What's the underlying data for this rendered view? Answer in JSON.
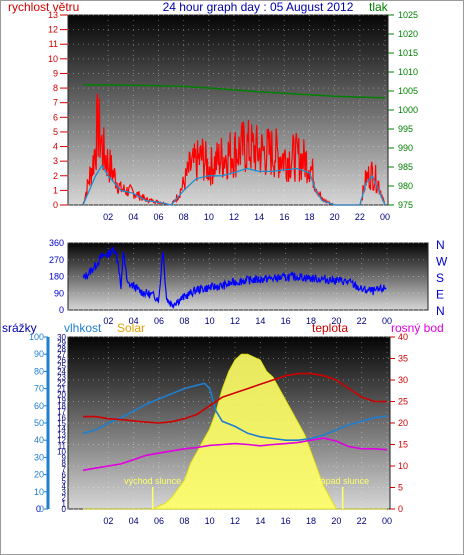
{
  "chart_data": [
    {
      "type": "line",
      "title": "24 hour graph day : 05 August 2012",
      "left_axis_label": "rychlost větru",
      "right_axis_label": "tlak",
      "y_left_lim": [
        0,
        13
      ],
      "y_left_ticks": [
        "0",
        "1",
        "2",
        "3",
        "4",
        "5",
        "6",
        "7",
        "8",
        "9",
        "10",
        "11",
        "12",
        "13"
      ],
      "y_right_lim": [
        975,
        1025
      ],
      "y_right_ticks": [
        "975",
        "980",
        "985",
        "990",
        "995",
        "1000",
        "1005",
        "1010",
        "1015",
        "1020",
        "1025"
      ],
      "x_ticks": [
        "02",
        "04",
        "06",
        "08",
        "10",
        "12",
        "14",
        "16",
        "18",
        "20",
        "22",
        "00"
      ],
      "colors": {
        "wind_gust": "#ff0000",
        "wind_avg": "#1e8fd0",
        "pressure": "#008000"
      },
      "pressure": {
        "x": [
          0,
          2,
          4,
          6,
          8,
          10,
          12,
          14,
          16,
          18,
          20,
          22,
          24
        ],
        "y": [
          1006.6,
          1006.6,
          1006.5,
          1006.4,
          1006.2,
          1005.8,
          1005.3,
          1004.8,
          1004.4,
          1004.0,
          1003.6,
          1003.4,
          1003.2
        ]
      },
      "wind_gust_envelope": {
        "x": [
          0,
          0.8,
          1.2,
          1.6,
          2,
          2.4,
          3,
          4,
          5,
          6,
          7,
          7.5,
          8,
          8.5,
          9,
          9.5,
          10,
          11,
          12,
          13,
          14,
          15,
          16,
          17,
          18,
          18.5,
          19,
          20,
          21,
          22,
          22.5,
          23,
          23.5,
          24
        ],
        "y": [
          0,
          4,
          7.5,
          5,
          4,
          3,
          1.5,
          1.2,
          0.5,
          0.3,
          0,
          0.8,
          2,
          3.5,
          4,
          4.5,
          3.5,
          4.5,
          5,
          5.5,
          5,
          5,
          4.5,
          4.5,
          4,
          2,
          0.5,
          0,
          0,
          0,
          2.5,
          3,
          2,
          0
        ]
      },
      "wind_avg": {
        "x": [
          0,
          1,
          1.5,
          2,
          3,
          4,
          5,
          6,
          7,
          8,
          9,
          10,
          11,
          12,
          13,
          14,
          15,
          16,
          17,
          18,
          18.5,
          19,
          20,
          22,
          22.5,
          23,
          24
        ],
        "y": [
          0,
          2,
          2.7,
          2,
          1,
          0.8,
          0.3,
          0.2,
          0,
          1,
          1.8,
          2,
          2,
          2.2,
          2.5,
          2.3,
          2.3,
          2.4,
          2.5,
          2.2,
          1,
          0.3,
          0,
          0,
          1.5,
          2,
          0
        ]
      }
    },
    {
      "type": "line",
      "title": "",
      "right_axis_labels": [
        "N",
        "W",
        "S",
        "E",
        "N"
      ],
      "y_left_lim": [
        0,
        360
      ],
      "y_left_ticks": [
        "0",
        "90",
        "180",
        "270",
        "360"
      ],
      "x_ticks": [
        "02",
        "04",
        "06",
        "08",
        "10",
        "12",
        "14",
        "16",
        "18",
        "20",
        "22",
        "00"
      ],
      "colors": {
        "wind_direction": "#0000ff"
      },
      "wind_direction": {
        "x": [
          0,
          0.5,
          1,
          1.5,
          2,
          2.5,
          2.8,
          3,
          3.2,
          3.5,
          4,
          4.5,
          5,
          5.5,
          6,
          6.3,
          6.6,
          7,
          8,
          9,
          10,
          11,
          12,
          13,
          14,
          15,
          16,
          17,
          18,
          19,
          20,
          21,
          22,
          23,
          24
        ],
        "y": [
          170,
          200,
          240,
          290,
          300,
          330,
          250,
          110,
          320,
          140,
          130,
          100,
          90,
          80,
          60,
          330,
          60,
          30,
          70,
          110,
          120,
          130,
          150,
          160,
          165,
          170,
          175,
          180,
          170,
          165,
          160,
          150,
          110,
          100,
          120
        ]
      }
    },
    {
      "type": "line",
      "title": "",
      "labels": {
        "rain": "srážky",
        "humidity": "vlhkost",
        "solar": "Solar",
        "temperature": "teplota",
        "dewpoint": "rosný bod",
        "sunrise": "východ slunce",
        "sunset": "západ slunce"
      },
      "rain_ticks": [
        "0",
        "",
        "",
        "",
        "",
        "",
        "",
        "",
        "",
        "",
        ""
      ],
      "humidity_lim": [
        0,
        100
      ],
      "humidity_ticks": [
        "0",
        "10",
        "20",
        "30",
        "40",
        "50",
        "60",
        "70",
        "80",
        "90",
        "100"
      ],
      "solar_scale_ticks": [
        "0",
        "1",
        "2",
        "3",
        "4",
        "5",
        "6",
        "7",
        "8",
        "9",
        "10",
        "11",
        "12",
        "13",
        "14",
        "15",
        "16",
        "17",
        "18",
        "19",
        "20",
        "21",
        "22",
        "23",
        "24",
        "25",
        "26",
        "27",
        "28",
        "29",
        "30"
      ],
      "temp_lim": [
        0,
        40
      ],
      "temp_ticks": [
        "0",
        "5",
        "10",
        "15",
        "20",
        "25",
        "30",
        "35",
        "40"
      ],
      "x_ticks": [
        "02",
        "04",
        "06",
        "08",
        "10",
        "12",
        "14",
        "16",
        "18",
        "20",
        "22",
        "00"
      ],
      "sunrise_hour": 5.5,
      "sunset_hour": 20.5,
      "colors": {
        "solar": "#ffff66",
        "temperature": "#d00000",
        "dewpoint": "#e000e0",
        "humidity": "#1e7fd0",
        "rain": "#0000cc"
      },
      "temperature": {
        "x": [
          0,
          1,
          2,
          3,
          4,
          5,
          6,
          7,
          8,
          9,
          10,
          11,
          12,
          13,
          14,
          15,
          16,
          17,
          18,
          19,
          20,
          21,
          22,
          23,
          24
        ],
        "y": [
          21.5,
          21.5,
          21,
          20.8,
          20.5,
          20.2,
          20,
          20.3,
          21,
          22,
          24,
          26,
          27,
          28,
          29,
          30,
          31,
          31.5,
          31.5,
          31,
          30,
          28,
          26,
          25,
          25
        ]
      },
      "dewpoint": {
        "x": [
          0,
          1,
          2,
          3,
          4,
          5,
          6,
          7,
          8,
          9,
          10,
          11,
          12,
          13,
          14,
          15,
          16,
          17,
          18,
          19,
          20,
          21,
          22,
          23,
          24
        ],
        "y": [
          9,
          9.5,
          10,
          10.5,
          11.5,
          12.5,
          13,
          13.5,
          14,
          14.3,
          14.8,
          15,
          15.2,
          15,
          14.7,
          15,
          15.2,
          15.5,
          16,
          16.5,
          15.8,
          14.5,
          14,
          14,
          13.8
        ]
      },
      "humidity": {
        "x": [
          0,
          1,
          2,
          3,
          4,
          5,
          6,
          7,
          8,
          9,
          9.6,
          10,
          10.5,
          11,
          12,
          13,
          14,
          15,
          16,
          17,
          18,
          19,
          20,
          21,
          22,
          23,
          24
        ],
        "y": [
          44,
          46,
          50,
          53,
          57,
          61,
          64,
          67,
          70,
          72,
          73,
          70,
          57,
          51,
          48,
          44,
          42,
          41,
          40,
          40,
          41,
          43,
          46,
          49,
          51,
          53,
          54
        ]
      },
      "solar": {
        "x": [
          0,
          5.5,
          6,
          6.5,
          7,
          7.5,
          8,
          8.5,
          9,
          9.5,
          10,
          10.5,
          11,
          11.5,
          12,
          12.5,
          13,
          13.5,
          14,
          14.5,
          15,
          15.5,
          16,
          16.5,
          17,
          17.5,
          18,
          18.5,
          19,
          19.5,
          20,
          24
        ],
        "y": [
          0,
          0,
          0.5,
          1,
          2,
          3.5,
          5,
          8,
          10,
          12,
          14,
          17,
          21,
          24,
          26,
          27,
          27,
          26.5,
          26,
          24,
          23,
          21,
          19,
          17,
          15,
          13,
          10,
          7,
          4,
          2,
          0,
          0
        ]
      }
    }
  ]
}
